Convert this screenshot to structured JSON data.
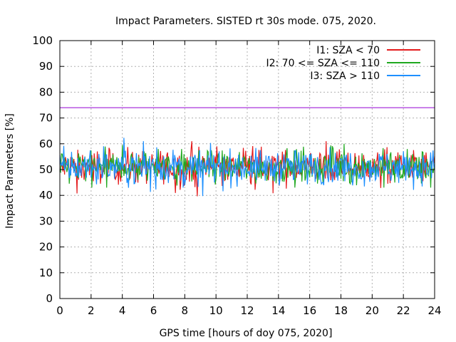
{
  "chart_data": {
    "type": "line",
    "title": "Impact Parameters. SISTED rt 30s mode. 075, 2020.",
    "xlabel": "GPS time [hours of doy 075, 2020]",
    "ylabel": "Impact Parameters [%]",
    "xlim": [
      0,
      24
    ],
    "ylim": [
      0,
      100
    ],
    "xticks": [
      0,
      2,
      4,
      6,
      8,
      10,
      12,
      14,
      16,
      18,
      20,
      22,
      24
    ],
    "yticks": [
      0,
      10,
      20,
      30,
      40,
      50,
      60,
      70,
      80,
      90,
      100
    ],
    "grid": true,
    "legend_position": "top-right",
    "threshold": {
      "value": 74,
      "color": "#9400d3"
    },
    "series": [
      {
        "name": "I1: SZA < 70",
        "color": "#e41a1c",
        "mean": 51,
        "min": 39.5,
        "max": 61,
        "step_hours": 0.05
      },
      {
        "name": "I2: 70 <= SZA <= 110",
        "color": "#1fa81f",
        "mean": 51,
        "min": 43,
        "max": 60,
        "step_hours": 0.05
      },
      {
        "name": "I3: SZA > 110",
        "color": "#1e90ff",
        "mean": 51,
        "min": 39.5,
        "max": 64.5,
        "step_hours": 0.05
      }
    ]
  }
}
